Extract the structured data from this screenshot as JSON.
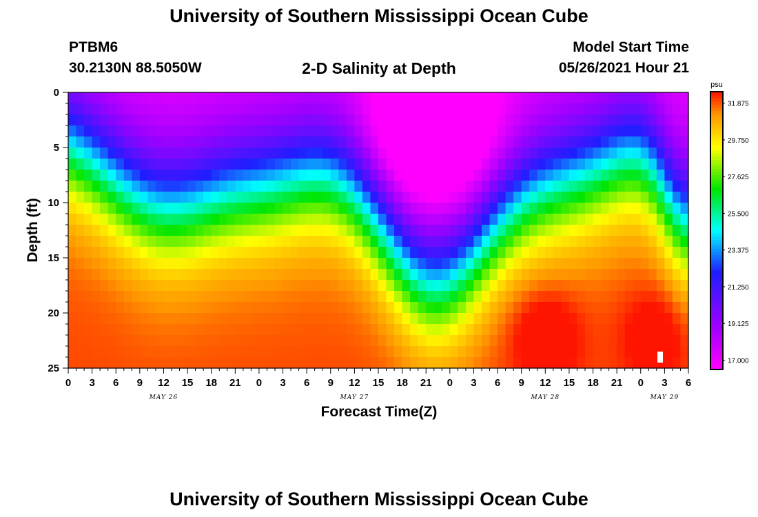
{
  "header": {
    "title": "University of Southern Mississippi Ocean Cube",
    "footer_title": "University of Southern Mississippi Ocean Cube",
    "station_id": "PTBM6",
    "station_location": "30.2130N  88.5050W",
    "subtitle": "2-D Salinity at Depth",
    "model_start_label": "Model Start Time",
    "model_start_value": "05/26/2021 Hour 21"
  },
  "chart_data": {
    "type": "heatmap",
    "title": "2-D Salinity at Depth",
    "xlabel": "Forecast Time(Z)",
    "ylabel": "Depth (ft)",
    "x_range_hours_from_may26_00z": [
      0,
      78
    ],
    "y_range_ft": [
      0,
      25
    ],
    "y_inverted": true,
    "x_tick_labels": [
      "0",
      "3",
      "6",
      "9",
      "12",
      "15",
      "18",
      "21",
      "0",
      "3",
      "6",
      "9",
      "12",
      "15",
      "18",
      "21",
      "0",
      "3",
      "6",
      "9",
      "12",
      "15",
      "18",
      "21",
      "0",
      "3",
      "6"
    ],
    "y_ticks": [
      0,
      5,
      10,
      15,
      20,
      25
    ],
    "date_labels": [
      {
        "text": "MAY 26",
        "hour": 12
      },
      {
        "text": "MAY 27",
        "hour": 36
      },
      {
        "text": "MAY 28",
        "hour": 60
      },
      {
        "text": "MAY 29",
        "hour": 75
      }
    ],
    "colorbar": {
      "unit": "psu",
      "min": 16.5,
      "max": 32.5,
      "tick_labels": [
        "31.875",
        "29.750",
        "27.625",
        "25.500",
        "23.375",
        "21.250",
        "19.125",
        "17.000"
      ],
      "tick_values": [
        31.875,
        29.75,
        27.625,
        25.5,
        23.375,
        21.25,
        19.125,
        17.0
      ]
    },
    "value_range_psu": [
      17.0,
      32.5
    ],
    "key_features": [
      {
        "desc": "fresh surface layer",
        "hours": [
          0,
          78
        ],
        "depth_ft": [
          0,
          4
        ],
        "psu": 21
      },
      {
        "desc": "freshest patch",
        "hours": [
          37,
          54
        ],
        "depth_ft": [
          0,
          10
        ],
        "psu": 17.5
      },
      {
        "desc": "salty bottom maxima",
        "hours": [
          57,
          63
        ],
        "depth_ft": [
          20,
          25
        ],
        "psu": 32.5
      },
      {
        "desc": "salty bottom maxima",
        "hours": [
          71,
          77
        ],
        "depth_ft": [
          18,
          25
        ],
        "psu": 32.2
      }
    ]
  }
}
